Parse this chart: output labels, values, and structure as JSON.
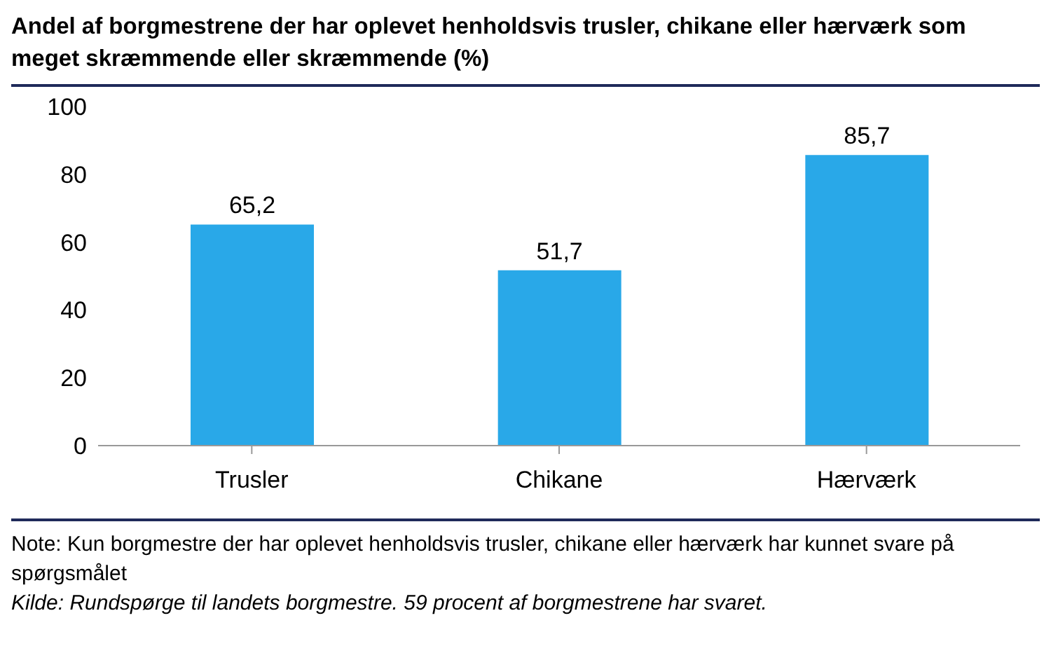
{
  "chart_data": {
    "type": "bar",
    "title": "Andel af borgmestrene der har oplevet henholdsvis trusler, chikane eller hærværk som meget skræmmende eller skræmmende (%)",
    "categories": [
      "Trusler",
      "Chikane",
      "Hærværk"
    ],
    "values": [
      65.2,
      51.7,
      85.7
    ],
    "value_labels": [
      "65,2",
      "51,7",
      "85,7"
    ],
    "color": "#29a8e8",
    "ylim": [
      0,
      100
    ],
    "yticks": [
      0,
      20,
      40,
      60,
      80,
      100
    ],
    "grid": false,
    "legend": false,
    "annotations": [
      "Note: Kun borgmestre der har oplevet henholdsvis trusler, chikane eller hærværk har kunnet svare på spørgsmålet",
      "Kilde: Rundspørge til landets borgmestre. 59 procent af borgmestrene har svaret."
    ]
  }
}
